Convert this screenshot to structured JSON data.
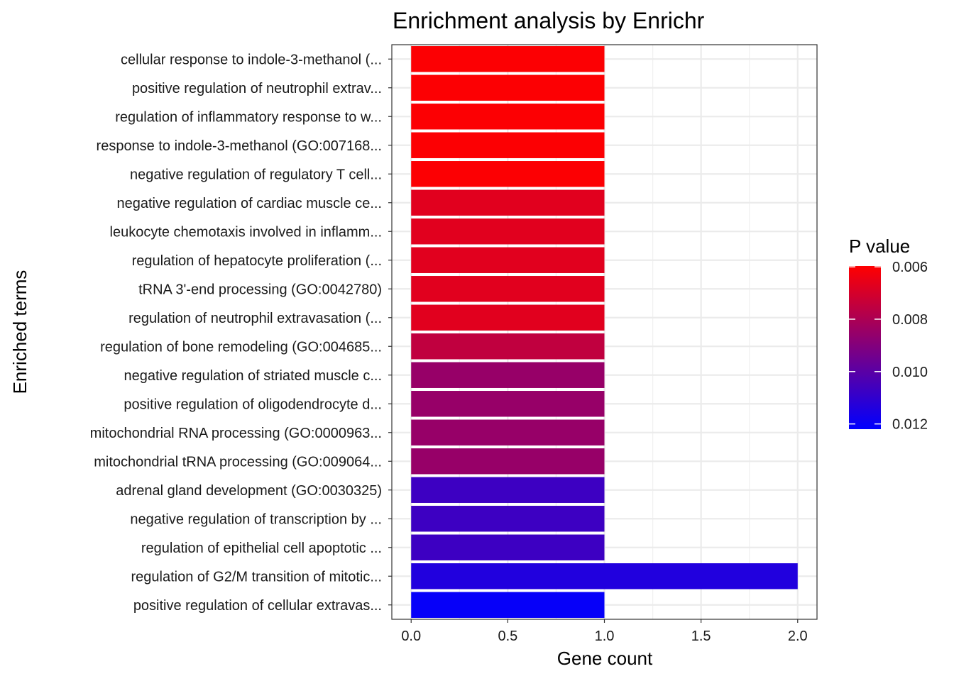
{
  "chart_data": {
    "type": "bar",
    "orientation": "horizontal",
    "title": "Enrichment analysis by Enrichr",
    "xlabel": "Gene count",
    "ylabel": "Enriched terms",
    "xlim": [
      -0.1,
      2.1
    ],
    "xticks": [
      0.0,
      0.5,
      1.0,
      1.5,
      2.0
    ],
    "xtick_labels": [
      "0.0",
      "0.5",
      "1.0",
      "1.5",
      "2.0"
    ],
    "grid": true,
    "categories": [
      "cellular response to indole-3-methanol (...",
      "positive regulation of neutrophil extrav...",
      "regulation of inflammatory response to w...",
      "response to indole-3-methanol (GO:007168...",
      "negative regulation of regulatory T cell...",
      "negative regulation of cardiac muscle ce...",
      "leukocyte chemotaxis involved in inflamm...",
      "regulation of hepatocyte proliferation (...",
      "tRNA 3'-end processing (GO:0042780)",
      "regulation of neutrophil extravasation (...",
      "regulation of bone remodeling (GO:004685...",
      "negative regulation of striated muscle c...",
      "positive regulation of oligodendrocyte d...",
      "mitochondrial RNA processing (GO:0000963...",
      "mitochondrial tRNA processing (GO:009064...",
      "adrenal gland development (GO:0030325)",
      "negative regulation of transcription by ...",
      "regulation of epithelial cell apoptotic ...",
      "regulation of G2/M transition of mitotic...",
      "positive regulation of cellular extravas..."
    ],
    "values": [
      1,
      1,
      1,
      1,
      1,
      1,
      1,
      1,
      1,
      1,
      1,
      1,
      1,
      1,
      1,
      1,
      1,
      1,
      2,
      1
    ],
    "p_values": [
      0.00605,
      0.00605,
      0.00605,
      0.00605,
      0.00605,
      0.0067,
      0.0067,
      0.0067,
      0.0067,
      0.0067,
      0.0075,
      0.0085,
      0.0085,
      0.0085,
      0.0085,
      0.0107,
      0.0107,
      0.0107,
      0.0114,
      0.01205
    ],
    "legend": {
      "title": "P value",
      "position": "right",
      "color_low": "#ff0000",
      "color_high": "#0000ff",
      "range": [
        0.00597,
        0.0122
      ],
      "ticks": [
        0.006,
        0.008,
        0.01,
        0.012
      ],
      "tick_labels": [
        "0.006",
        "0.008",
        "0.010",
        "0.012"
      ]
    }
  }
}
